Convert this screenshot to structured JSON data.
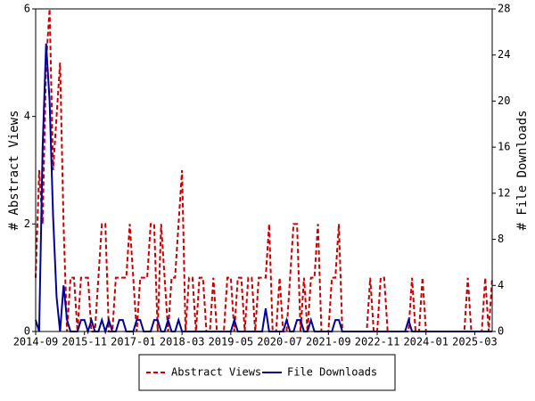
{
  "chart_data": {
    "type": "line",
    "categories": [
      "2014-09",
      null,
      null,
      null,
      null,
      null,
      null,
      null,
      null,
      null,
      null,
      null,
      null,
      null,
      "2015-11",
      null,
      null,
      null,
      null,
      null,
      null,
      null,
      null,
      null,
      null,
      null,
      null,
      null,
      "2017-01",
      null,
      null,
      null,
      null,
      null,
      null,
      null,
      null,
      null,
      null,
      null,
      null,
      null,
      "2018-03",
      null,
      null,
      null,
      null,
      null,
      null,
      null,
      null,
      null,
      null,
      null,
      null,
      null,
      "2019-05",
      null,
      null,
      null,
      null,
      null,
      null,
      null,
      null,
      null,
      null,
      null,
      null,
      null,
      "2020-07",
      null,
      null,
      null,
      null,
      null,
      null,
      null,
      null,
      null,
      null,
      null,
      null,
      null,
      "2021-09",
      null,
      null,
      null,
      null,
      null,
      null,
      null,
      null,
      null,
      null,
      null,
      null,
      null,
      "2022-11",
      null,
      null,
      null,
      null,
      null,
      null,
      null,
      null,
      null,
      null,
      null,
      null,
      null,
      "2024-01",
      null,
      null,
      null,
      null,
      null,
      null,
      null,
      null,
      null,
      null,
      null,
      null,
      null,
      "2025-03",
      null,
      null,
      null,
      null,
      null
    ],
    "series": [
      {
        "name": "Abstract Views",
        "color": "#cc0000",
        "dash": true,
        "axis": "y",
        "values": [
          1,
          3,
          2,
          5,
          6,
          3,
          4,
          5,
          2,
          0,
          1,
          1,
          0,
          1,
          1,
          1,
          0,
          0,
          1,
          2,
          2,
          0,
          0,
          1,
          1,
          1,
          1,
          2,
          1,
          0,
          1,
          1,
          1,
          2,
          2,
          0,
          2,
          1,
          0,
          1,
          1,
          2,
          3,
          0,
          1,
          1,
          0,
          1,
          1,
          0,
          0,
          1,
          0,
          0,
          0,
          1,
          1,
          0,
          1,
          1,
          0,
          1,
          1,
          0,
          1,
          1,
          1,
          2,
          0,
          0,
          1,
          0,
          0,
          1,
          2,
          2,
          0,
          1,
          0,
          1,
          1,
          2,
          0,
          0,
          0,
          1,
          1,
          2,
          0,
          0,
          0,
          0,
          0,
          0,
          0,
          0,
          1,
          0,
          0,
          1,
          1,
          0,
          0,
          0,
          0,
          0,
          0,
          0,
          1,
          0,
          0,
          1,
          0,
          0,
          0,
          0,
          0,
          0,
          0,
          0,
          0,
          0,
          0,
          0,
          1,
          0,
          0,
          0,
          0,
          1,
          0,
          1
        ]
      },
      {
        "name": "File Downloads",
        "color": "#000099",
        "dash": false,
        "axis": "y2",
        "values": [
          1,
          0,
          16,
          25,
          20,
          10,
          3,
          0,
          4,
          1,
          0,
          0,
          0,
          1,
          1,
          0,
          1,
          0,
          0,
          1,
          0,
          1,
          0,
          0,
          1,
          1,
          0,
          0,
          0,
          1,
          1,
          0,
          0,
          0,
          1,
          1,
          0,
          0,
          1,
          0,
          0,
          1,
          0,
          0,
          0,
          0,
          0,
          0,
          0,
          0,
          0,
          0,
          0,
          0,
          0,
          0,
          0,
          1,
          0,
          0,
          0,
          0,
          0,
          0,
          0,
          0,
          2,
          0,
          0,
          0,
          0,
          0,
          1,
          0,
          0,
          1,
          1,
          0,
          0,
          1,
          0,
          0,
          0,
          0,
          0,
          0,
          1,
          1,
          0,
          0,
          0,
          0,
          0,
          0,
          0,
          0,
          0,
          0,
          0,
          0,
          0,
          0,
          0,
          0,
          0,
          0,
          0,
          1,
          0,
          0,
          0,
          0,
          0,
          0,
          0,
          0,
          0,
          0,
          0,
          0,
          0,
          0,
          0,
          0,
          0,
          0,
          0,
          0,
          0,
          0,
          0,
          0
        ]
      }
    ],
    "ylabel": "# Abstract Views",
    "y2label": "# File Downloads",
    "ylim": [
      0,
      6
    ],
    "yticks": [
      0,
      2,
      4,
      6
    ],
    "y2lim": [
      0,
      28
    ],
    "y2ticks": [
      0,
      4,
      8,
      12,
      16,
      20,
      24,
      28
    ],
    "legend": "bottom"
  }
}
